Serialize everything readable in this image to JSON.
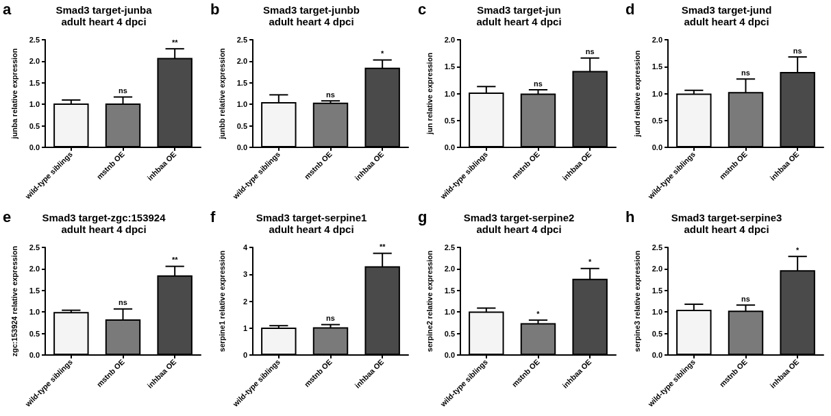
{
  "chart_data": [
    {
      "type": "bar",
      "title": "Smad3 target-junba",
      "subtitle": "adult heart 4 dpci",
      "ylabel": "junba relative expression",
      "categories": [
        "wild-type siblings",
        "mstnb OE",
        "inhbaa OE"
      ],
      "values": [
        1.02,
        1.02,
        2.08
      ],
      "errors": [
        0.08,
        0.15,
        0.21
      ],
      "colors": [
        "#f4f4f4",
        "#7a7a7a",
        "#4a4a4a"
      ],
      "ylim": [
        0,
        2.5
      ],
      "yticks": [
        {
          "value": 0,
          "label": "0.0"
        },
        0.5,
        {
          "value": 1,
          "label": "1.0"
        },
        1.5,
        {
          "value": 2,
          "label": "2.0"
        },
        2.5
      ],
      "annotations": [
        "a",
        {
          "text": "ns",
          "x": "mstnb OE",
          "y": 1.17
        },
        {
          "text": "**",
          "x": "inhbaa OE",
          "y": 2.29
        }
      ]
    },
    {
      "type": "bar",
      "title": "Smad3 target-junbb",
      "subtitle": "adult heart 4 dpci",
      "ylabel": "junbb relative expression",
      "categories": [
        "wild-type siblings",
        "mstnb OE",
        "inhbaa OE"
      ],
      "values": [
        1.05,
        1.04,
        1.85
      ],
      "errors": [
        0.17,
        0.04,
        0.18
      ],
      "colors": [
        "#f4f4f4",
        "#7a7a7a",
        "#4a4a4a"
      ],
      "ylim": [
        0,
        2.5
      ],
      "yticks": [
        {
          "value": 0,
          "label": "0.0"
        },
        0.5,
        {
          "value": 1,
          "label": "1.0"
        },
        1.5,
        {
          "value": 2,
          "label": "2.0"
        },
        2.5
      ],
      "annotations": [
        "b",
        {
          "text": "ns",
          "x": "mstnb OE",
          "y": 1.08
        },
        {
          "text": "*",
          "x": "inhbaa OE",
          "y": 2.03
        }
      ]
    },
    {
      "type": "bar",
      "title": "Smad3 target-jun",
      "subtitle": "adult heart 4 dpci",
      "ylabel": "jun relative expression",
      "categories": [
        "wild-type siblings",
        "mstnb OE",
        "inhbaa OE"
      ],
      "values": [
        1.02,
        1.0,
        1.42
      ],
      "errors": [
        0.11,
        0.07,
        0.24
      ],
      "colors": [
        "#f4f4f4",
        "#7a7a7a",
        "#4a4a4a"
      ],
      "ylim": [
        0,
        2
      ],
      "yticks": [
        {
          "value": 0,
          "label": "0.0"
        },
        0.5,
        {
          "value": 1,
          "label": "1.0"
        },
        1.5,
        {
          "value": 2,
          "label": "2.0"
        }
      ],
      "annotations": [
        "c",
        {
          "text": "ns",
          "x": "mstnb OE",
          "y": 1.07
        },
        {
          "text": "ns",
          "x": "inhbaa OE",
          "y": 1.66
        }
      ]
    },
    {
      "type": "bar",
      "title": "Smad3 target-jund",
      "subtitle": "adult heart 4 dpci",
      "ylabel": "jund relative expression",
      "categories": [
        "wild-type siblings",
        "mstnb OE",
        "inhbaa OE"
      ],
      "values": [
        1.0,
        1.03,
        1.4
      ],
      "errors": [
        0.06,
        0.24,
        0.28
      ],
      "colors": [
        "#f4f4f4",
        "#7a7a7a",
        "#4a4a4a"
      ],
      "ylim": [
        0,
        2
      ],
      "yticks": [
        {
          "value": 0,
          "label": "0.0"
        },
        0.5,
        {
          "value": 1,
          "label": "1.0"
        },
        1.5,
        {
          "value": 2,
          "label": "2.0"
        }
      ],
      "annotations": [
        "d",
        {
          "text": "ns",
          "x": "mstnb OE",
          "y": 1.27
        },
        {
          "text": "ns",
          "x": "inhbaa OE",
          "y": 1.68
        }
      ]
    },
    {
      "type": "bar",
      "title": "Smad3 target-zgc:153924",
      "subtitle": "adult heart 4 dpci",
      "ylabel": "zgc:153924 relative expression",
      "categories": [
        "wild-type siblings",
        "mstnb OE",
        "inhbaa OE"
      ],
      "values": [
        1.0,
        0.83,
        1.85
      ],
      "errors": [
        0.04,
        0.24,
        0.21
      ],
      "colors": [
        "#f4f4f4",
        "#7a7a7a",
        "#4a4a4a"
      ],
      "ylim": [
        0,
        2.5
      ],
      "yticks": [
        {
          "value": 0,
          "label": "0.0"
        },
        0.5,
        {
          "value": 1,
          "label": "1.0"
        },
        1.5,
        {
          "value": 2,
          "label": "2.0"
        },
        2.5
      ],
      "annotations": [
        "e",
        {
          "text": "ns",
          "x": "mstnb OE",
          "y": 1.07
        },
        {
          "text": "**",
          "x": "inhbaa OE",
          "y": 2.06
        }
      ]
    },
    {
      "type": "bar",
      "title": "Smad3 target-serpine1",
      "subtitle": "adult heart 4 dpci",
      "ylabel": "serpine1 relative expression",
      "categories": [
        "wild-type siblings",
        "mstnb OE",
        "inhbaa OE"
      ],
      "values": [
        1.02,
        1.03,
        3.3
      ],
      "errors": [
        0.07,
        0.1,
        0.48
      ],
      "colors": [
        "#f4f4f4",
        "#7a7a7a",
        "#4a4a4a"
      ],
      "ylim": [
        0,
        4
      ],
      "yticks": [
        0,
        1,
        2,
        3,
        4
      ],
      "annotations": [
        "f",
        {
          "text": "ns",
          "x": "mstnb OE",
          "y": 1.13
        },
        {
          "text": "**",
          "x": "inhbaa OE",
          "y": 3.78
        }
      ]
    },
    {
      "type": "bar",
      "title": "Smad3 target-serpine2",
      "subtitle": "adult heart 4 dpci",
      "ylabel": "serpine2 relative expression",
      "categories": [
        "wild-type siblings",
        "mstnb OE",
        "inhbaa OE"
      ],
      "values": [
        1.01,
        0.74,
        1.77
      ],
      "errors": [
        0.08,
        0.07,
        0.24
      ],
      "colors": [
        "#f4f4f4",
        "#7a7a7a",
        "#4a4a4a"
      ],
      "ylim": [
        0,
        2.5
      ],
      "yticks": [
        {
          "value": 0,
          "label": "0.0"
        },
        0.5,
        {
          "value": 1,
          "label": "1.0"
        },
        1.5,
        {
          "value": 2,
          "label": "2.0"
        },
        2.5
      ],
      "annotations": [
        "g",
        {
          "text": "*",
          "x": "mstnb OE",
          "y": 0.81
        },
        {
          "text": "*",
          "x": "inhbaa OE",
          "y": 2.01
        }
      ]
    },
    {
      "type": "bar",
      "title": "Smad3 target-serpine3",
      "subtitle": "adult heart 4 dpci",
      "ylabel": "serpine3 relative expression",
      "categories": [
        "wild-type siblings",
        "mstnb OE",
        "inhbaa OE"
      ],
      "values": [
        1.05,
        1.03,
        1.97
      ],
      "errors": [
        0.13,
        0.13,
        0.32
      ],
      "colors": [
        "#f4f4f4",
        "#7a7a7a",
        "#4a4a4a"
      ],
      "ylim": [
        0,
        2.5
      ],
      "yticks": [
        {
          "value": 0,
          "label": "0.0"
        },
        0.5,
        {
          "value": 1,
          "label": "1.0"
        },
        1.5,
        {
          "value": 2,
          "label": "2.0"
        },
        2.5
      ],
      "annotations": [
        "h",
        {
          "text": "ns",
          "x": "mstnb OE",
          "y": 1.16
        },
        {
          "text": "*",
          "x": "inhbaa OE",
          "y": 2.29
        }
      ]
    }
  ]
}
